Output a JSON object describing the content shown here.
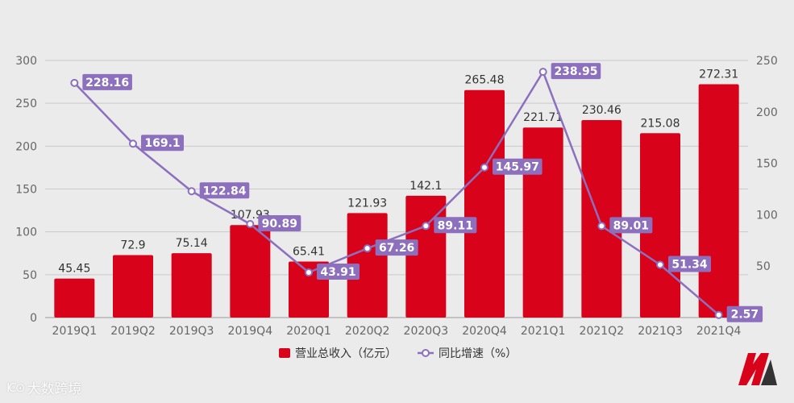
{
  "chart_data": {
    "type": "bar",
    "categories": [
      "2019Q1",
      "2019Q2",
      "2019Q3",
      "2019Q4",
      "2020Q1",
      "2020Q2",
      "2020Q3",
      "2020Q4",
      "2021Q1",
      "2021Q2",
      "2021Q3",
      "2021Q4"
    ],
    "series": [
      {
        "name": "营业总收入（亿元）",
        "type": "bar",
        "axis": "left",
        "color": "#d8021b",
        "values": [
          45.45,
          72.9,
          75.14,
          107.93,
          65.41,
          121.93,
          142.1,
          265.48,
          221.71,
          230.46,
          215.08,
          272.31
        ]
      },
      {
        "name": "同比增速（%）",
        "type": "line",
        "axis": "right",
        "color": "#8c6fbd",
        "values": [
          228.16,
          169.1,
          122.84,
          90.89,
          43.91,
          67.26,
          89.11,
          145.97,
          238.95,
          89.01,
          51.34,
          2.57
        ]
      }
    ],
    "left_axis": {
      "min": 0,
      "max": 300,
      "ticks": [
        0,
        50,
        100,
        150,
        200,
        250,
        300
      ]
    },
    "right_axis": {
      "min": 0,
      "max": 250,
      "ticks": [
        0,
        50,
        100,
        150,
        200,
        250
      ]
    },
    "grid": true,
    "legend_position": "bottom-center",
    "title": "",
    "xlabel": "",
    "ylabel": ""
  },
  "watermark": {
    "icon": "camera-icon",
    "icon_glyph": "IC⊙",
    "text": "大数跨境"
  },
  "brand": {
    "logo": "brand-logo-icon",
    "colors": {
      "primary": "#d8021b",
      "secondary": "#333333"
    }
  }
}
